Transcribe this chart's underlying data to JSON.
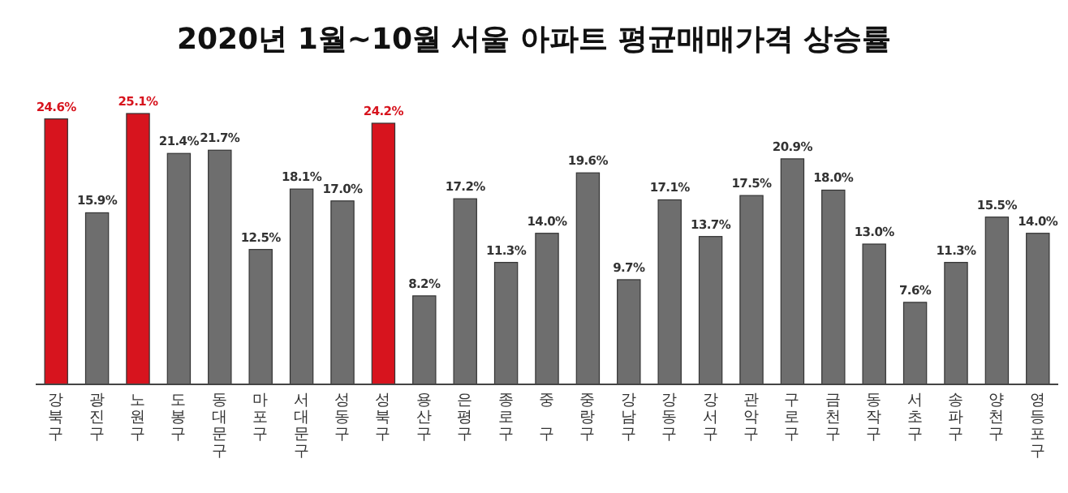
{
  "chart_data": {
    "type": "bar",
    "title": "2020년 1월~10월 서울 아파트 평균매매가격 상승률",
    "categories": [
      "강북구",
      "광진구",
      "노원구",
      "도봉구",
      "동대문구",
      "마포구",
      "서대문구",
      "성동구",
      "성북구",
      "용산구",
      "은평구",
      "종로구",
      "중 구",
      "중랑구",
      "강남구",
      "강동구",
      "강서구",
      "관악구",
      "구로구",
      "금천구",
      "동작구",
      "서초구",
      "송파구",
      "양천구",
      "영등포구"
    ],
    "values": [
      24.6,
      15.9,
      25.1,
      21.4,
      21.7,
      12.5,
      18.1,
      17.0,
      24.2,
      8.2,
      17.2,
      11.3,
      14.0,
      19.6,
      9.7,
      17.1,
      13.7,
      17.5,
      20.9,
      18.0,
      13.0,
      7.6,
      11.3,
      15.5,
      14.0
    ],
    "value_labels": [
      "24.6%",
      "15.9%",
      "25.1%",
      "21.4%",
      "21.7%",
      "12.5%",
      "18.1%",
      "17.0%",
      "24.2%",
      "8.2%",
      "17.2%",
      "11.3%",
      "14.0%",
      "19.6%",
      "9.7%",
      "17.1%",
      "13.7%",
      "17.5%",
      "20.9%",
      "18.0%",
      "13.0%",
      "7.6%",
      "11.3%",
      "15.5%",
      "14.0%"
    ],
    "colors": [
      "#d7141e",
      "#6e6e6e",
      "#d7141e",
      "#6e6e6e",
      "#6e6e6e",
      "#6e6e6e",
      "#6e6e6e",
      "#6e6e6e",
      "#d7141e",
      "#6e6e6e",
      "#6e6e6e",
      "#6e6e6e",
      "#6e6e6e",
      "#6e6e6e",
      "#6e6e6e",
      "#6e6e6e",
      "#6e6e6e",
      "#6e6e6e",
      "#6e6e6e",
      "#6e6e6e",
      "#6e6e6e",
      "#6e6e6e",
      "#6e6e6e",
      "#6e6e6e",
      "#6e6e6e"
    ]
  }
}
